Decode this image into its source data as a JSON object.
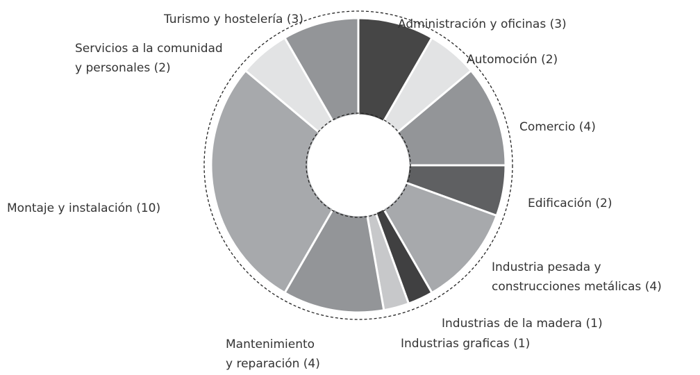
{
  "chart_data": {
    "type": "donut",
    "categories": [
      "Administración y oficinas (3)",
      "Automoción (2)",
      "Comercio (4)",
      "Edificación (2)",
      "Industria pesada y\nconstrucciones metálicas (4)",
      "Industrias de la madera (1)",
      "Industrias graficas (1)",
      "Mantenimiento\ny reparación (4)",
      "Montaje y instalación (10)",
      "Servicios a la comunidad\ny personales (2)",
      "Turismo y hostelería (3)"
    ],
    "values": [
      3,
      2,
      4,
      2,
      4,
      1,
      1,
      4,
      10,
      2,
      3
    ],
    "colors": [
      "#464646",
      "#e2e3e4",
      "#939598",
      "#5f6062",
      "#a7a9ac",
      "#404041",
      "#c7c8ca",
      "#939598",
      "#a7a9ac",
      "#e2e3e4",
      "#939598"
    ]
  }
}
